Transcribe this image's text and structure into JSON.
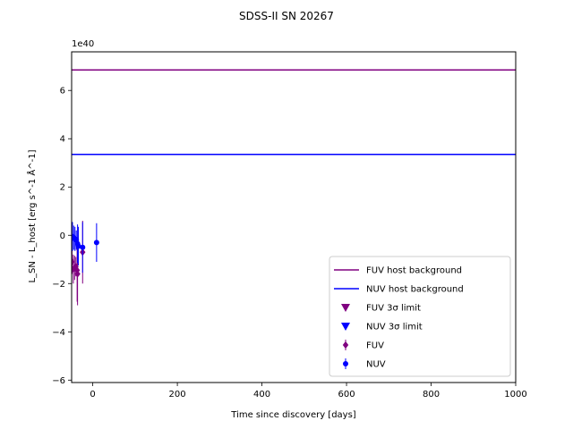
{
  "chart_data": {
    "type": "scatter",
    "title": "SDSS-II SN 20267",
    "xlabel": "Time since discovery [days]",
    "ylabel": "L_SN - L_host [erg s^-1 Å^-1]",
    "y_offset_label": "1e40",
    "xlim": [
      -50,
      1000
    ],
    "ylim": [
      -6.1,
      7.6
    ],
    "x_ticks": [
      0,
      200,
      400,
      600,
      800,
      1000
    ],
    "x_tick_labels": [
      "0",
      "200",
      "400",
      "600",
      "800",
      "1000"
    ],
    "y_ticks": [
      -6,
      -4,
      -2,
      0,
      2,
      4,
      6
    ],
    "y_tick_labels": [
      "−6",
      "−4",
      "−2",
      "0",
      "2",
      "4",
      "6"
    ],
    "grid": false,
    "legend_position": "lower right",
    "host_backgrounds": [
      {
        "name": "FUV host background",
        "value": 6.85,
        "color": "#800080"
      },
      {
        "name": "NUV host background",
        "value": 3.35,
        "color": "#0000ff"
      }
    ],
    "legend": [
      {
        "label": "FUV host background",
        "marker": "line",
        "color": "#800080"
      },
      {
        "label": "NUV host background",
        "marker": "line",
        "color": "#0000ff"
      },
      {
        "label": "FUV 3σ limit",
        "marker": "triangle-down",
        "color": "#800080"
      },
      {
        "label": "NUV 3σ limit",
        "marker": "triangle-down",
        "color": "#0000ff"
      },
      {
        "label": "FUV",
        "marker": "diamond",
        "color": "#800080"
      },
      {
        "label": "NUV",
        "marker": "circle",
        "color": "#0000ff"
      }
    ],
    "series": [
      {
        "name": "FUV",
        "marker": "diamond",
        "color": "#800080",
        "points": [
          {
            "x": -49,
            "y": -1.1,
            "err": 0.5
          },
          {
            "x": -46,
            "y": -1.4,
            "err": 0.6
          },
          {
            "x": -43,
            "y": -1.35,
            "err": 0.5
          },
          {
            "x": -40,
            "y": -1.3,
            "err": 0.4
          },
          {
            "x": -37,
            "y": -1.45,
            "err": 1.3
          },
          {
            "x": -36,
            "y": -1.6,
            "err": 1.3
          },
          {
            "x": -24,
            "y": -0.7,
            "err": 1.3
          }
        ]
      },
      {
        "name": "NUV",
        "marker": "circle",
        "color": "#0000ff",
        "points": [
          {
            "x": -48,
            "y": -0.05,
            "err": 0.6
          },
          {
            "x": -45,
            "y": -0.1,
            "err": 0.5
          },
          {
            "x": -42,
            "y": -0.15,
            "err": 0.5
          },
          {
            "x": -39,
            "y": -0.2,
            "err": 0.4
          },
          {
            "x": -36,
            "y": -0.35,
            "err": 0.8
          },
          {
            "x": -34,
            "y": -0.45,
            "err": 0.8
          },
          {
            "x": -24,
            "y": -0.5,
            "err": 1.05
          },
          {
            "x": 9,
            "y": -0.3,
            "err": 0.8
          }
        ]
      }
    ]
  }
}
